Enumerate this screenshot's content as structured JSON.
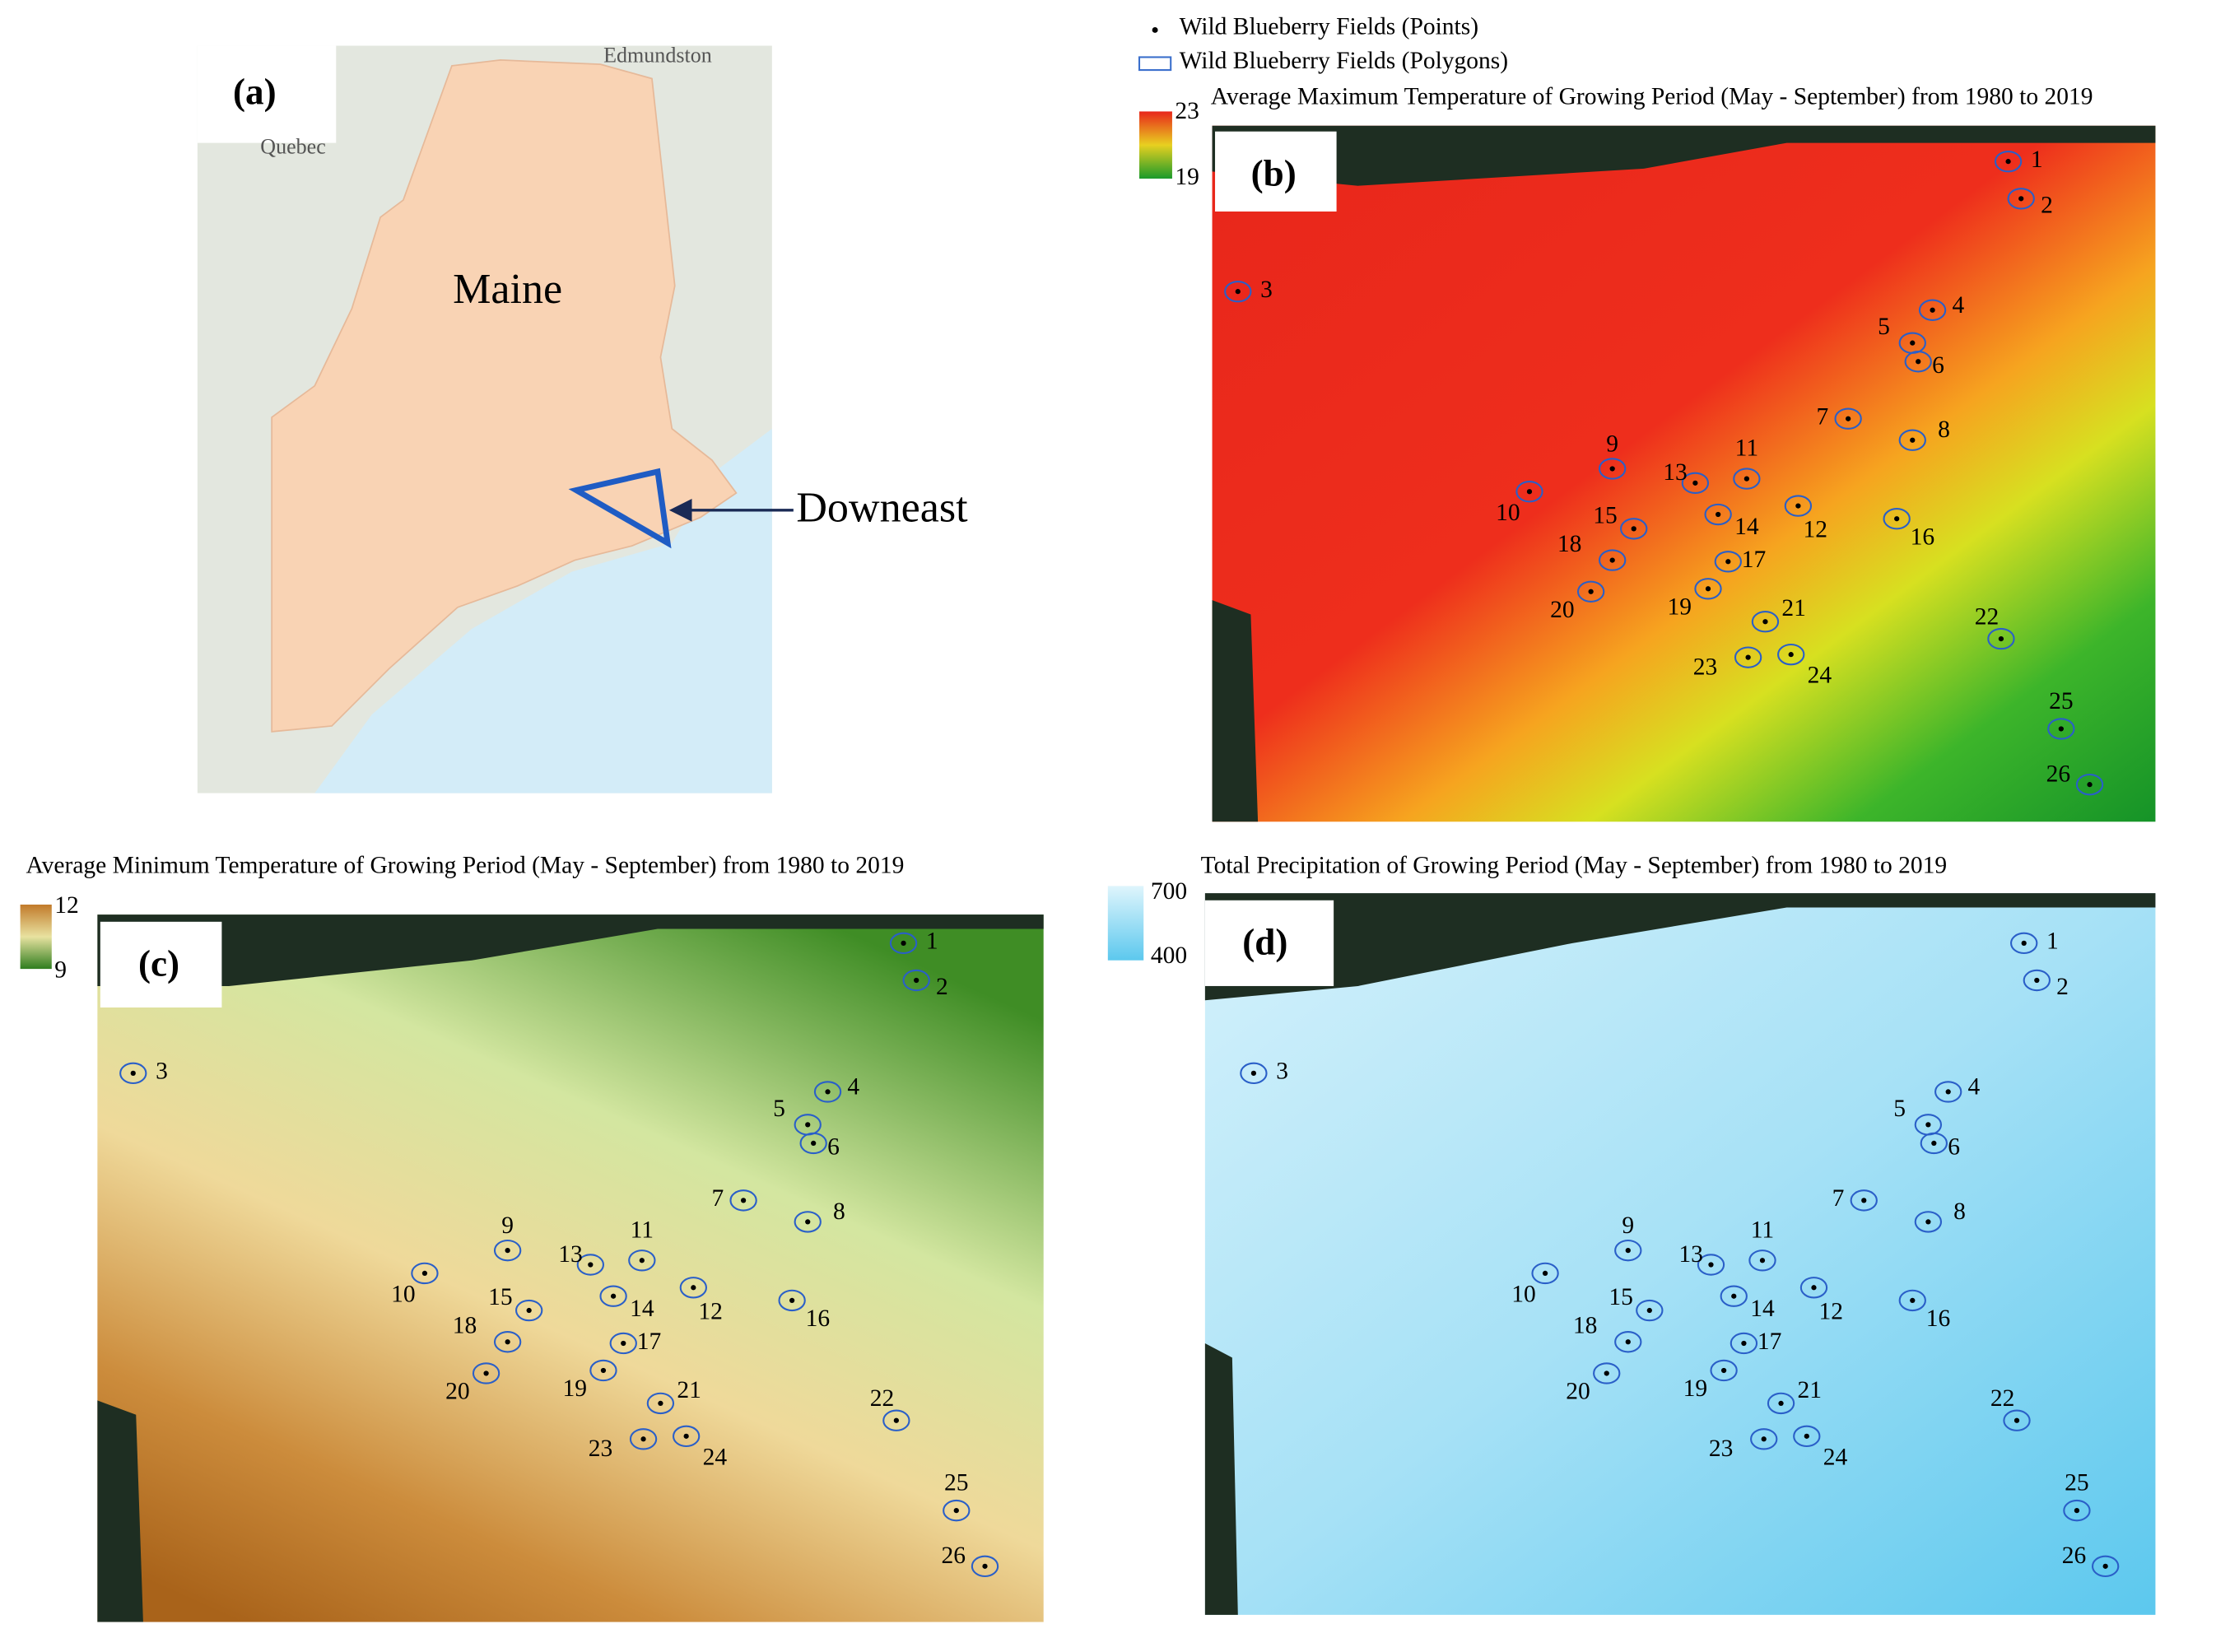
{
  "panel_a": {
    "label": "(a)",
    "state": "Maine",
    "region": "Downeast",
    "places": [
      "Edmundston",
      "Quebec"
    ]
  },
  "legend": {
    "points": "Wild Blueberry Fields (Points)",
    "polygons": "Wild Blueberry Fields (Polygons)"
  },
  "panel_b": {
    "label": "(b)",
    "title": "Average Maximum Temperature of Growing Period (May - September) from 1980 to 2019",
    "scale_max": 23,
    "scale_min": 19
  },
  "panel_c": {
    "label": "(c)",
    "title": "Average Minimum Temperature of Growing Period (May - September) from 1980 to 2019",
    "scale_max": 12,
    "scale_min": 9
  },
  "panel_d": {
    "label": "(d)",
    "title": "Total Precipitation of Growing Period (May - September) from 1980 to 2019",
    "scale_max": 700,
    "scale_min": 400
  },
  "fields": [
    "1",
    "2",
    "3",
    "4",
    "5",
    "6",
    "7",
    "8",
    "9",
    "10",
    "11",
    "12",
    "13",
    "14",
    "15",
    "16",
    "17",
    "18",
    "19",
    "20",
    "21",
    "22",
    "23",
    "24",
    "25",
    "26"
  ]
}
